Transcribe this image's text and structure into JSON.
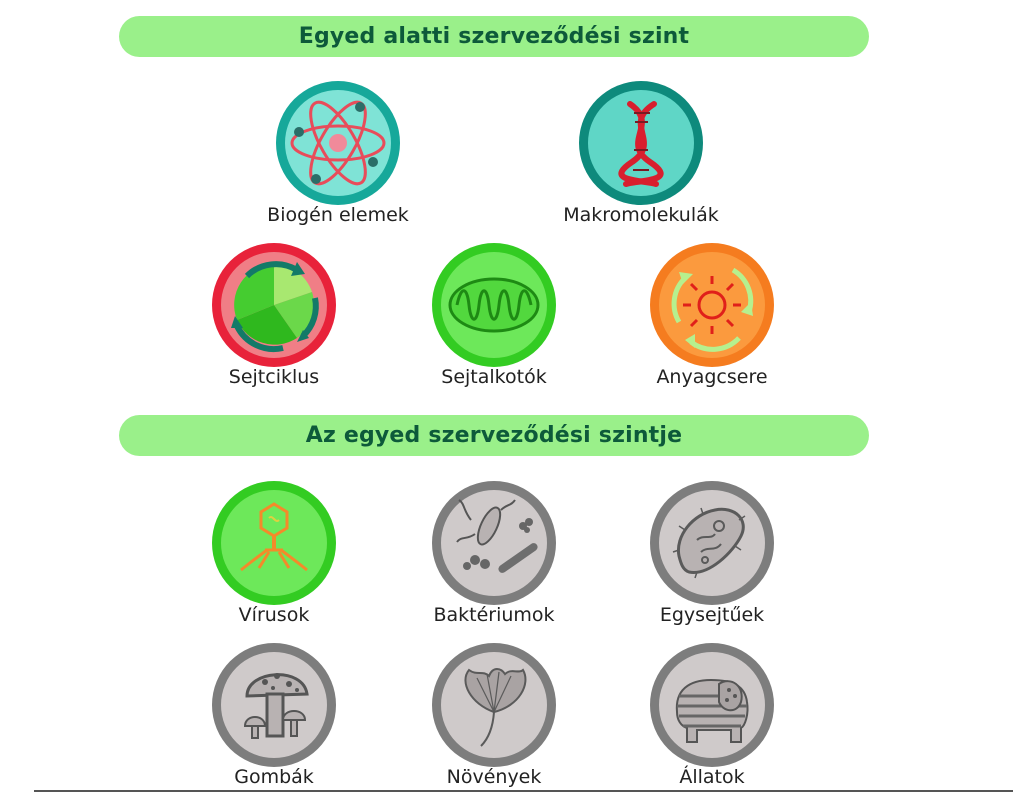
{
  "sections": [
    {
      "title": "Egyed alatti szerveződési szint",
      "items": [
        {
          "label": "Biogén elemek",
          "icon": "atom-icon"
        },
        {
          "label": "Makromolekulák",
          "icon": "dna-icon"
        },
        {
          "label": "Sejtciklus",
          "icon": "cell-cycle-icon"
        },
        {
          "label": "Sejtalkotók",
          "icon": "mitochondrion-icon"
        },
        {
          "label": "Anyagcsere",
          "icon": "metabolism-icon"
        }
      ]
    },
    {
      "title": "Az egyed szerveződési szintje",
      "items": [
        {
          "label": "Vírusok",
          "icon": "virus-icon"
        },
        {
          "label": "Baktériumok",
          "icon": "bacteria-icon"
        },
        {
          "label": "Egysejtűek",
          "icon": "protist-icon"
        },
        {
          "label": "Gombák",
          "icon": "mushroom-icon"
        },
        {
          "label": "Növények",
          "icon": "ginkgo-leaf-icon"
        },
        {
          "label": "Állatok",
          "icon": "elephant-icon"
        }
      ]
    }
  ],
  "colors": {
    "bar": "#9af08a",
    "bar_text": "#0d5a3a",
    "teal": "#1ab3a3",
    "dark_teal": "#0e8a7c",
    "red": "#e8223a",
    "green": "#33cc22",
    "orange": "#f57c1f",
    "gray": "#7d7d7d"
  }
}
